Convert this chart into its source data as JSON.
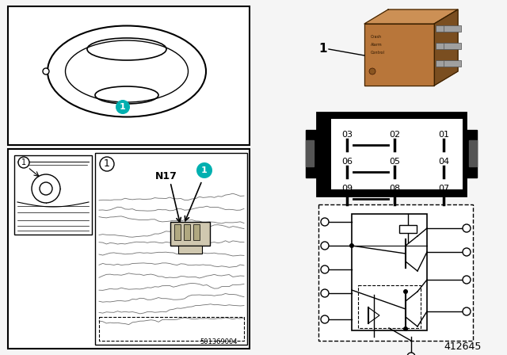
{
  "bg_color": "#f5f5f5",
  "white": "#ffffff",
  "black": "#000000",
  "teal_color": "#00b0b0",
  "relay_front": "#b8763a",
  "relay_top": "#cc9055",
  "relay_right": "#7a4e20",
  "relay_dark": "#3a2000",
  "pin_gray": "#a0a0a0",
  "pin_dark": "#505050",
  "figure_number": "412645",
  "pin_labels": [
    [
      "03",
      "02",
      "01"
    ],
    [
      "06",
      "05",
      "04"
    ],
    [
      "09",
      "08",
      "07"
    ]
  ]
}
